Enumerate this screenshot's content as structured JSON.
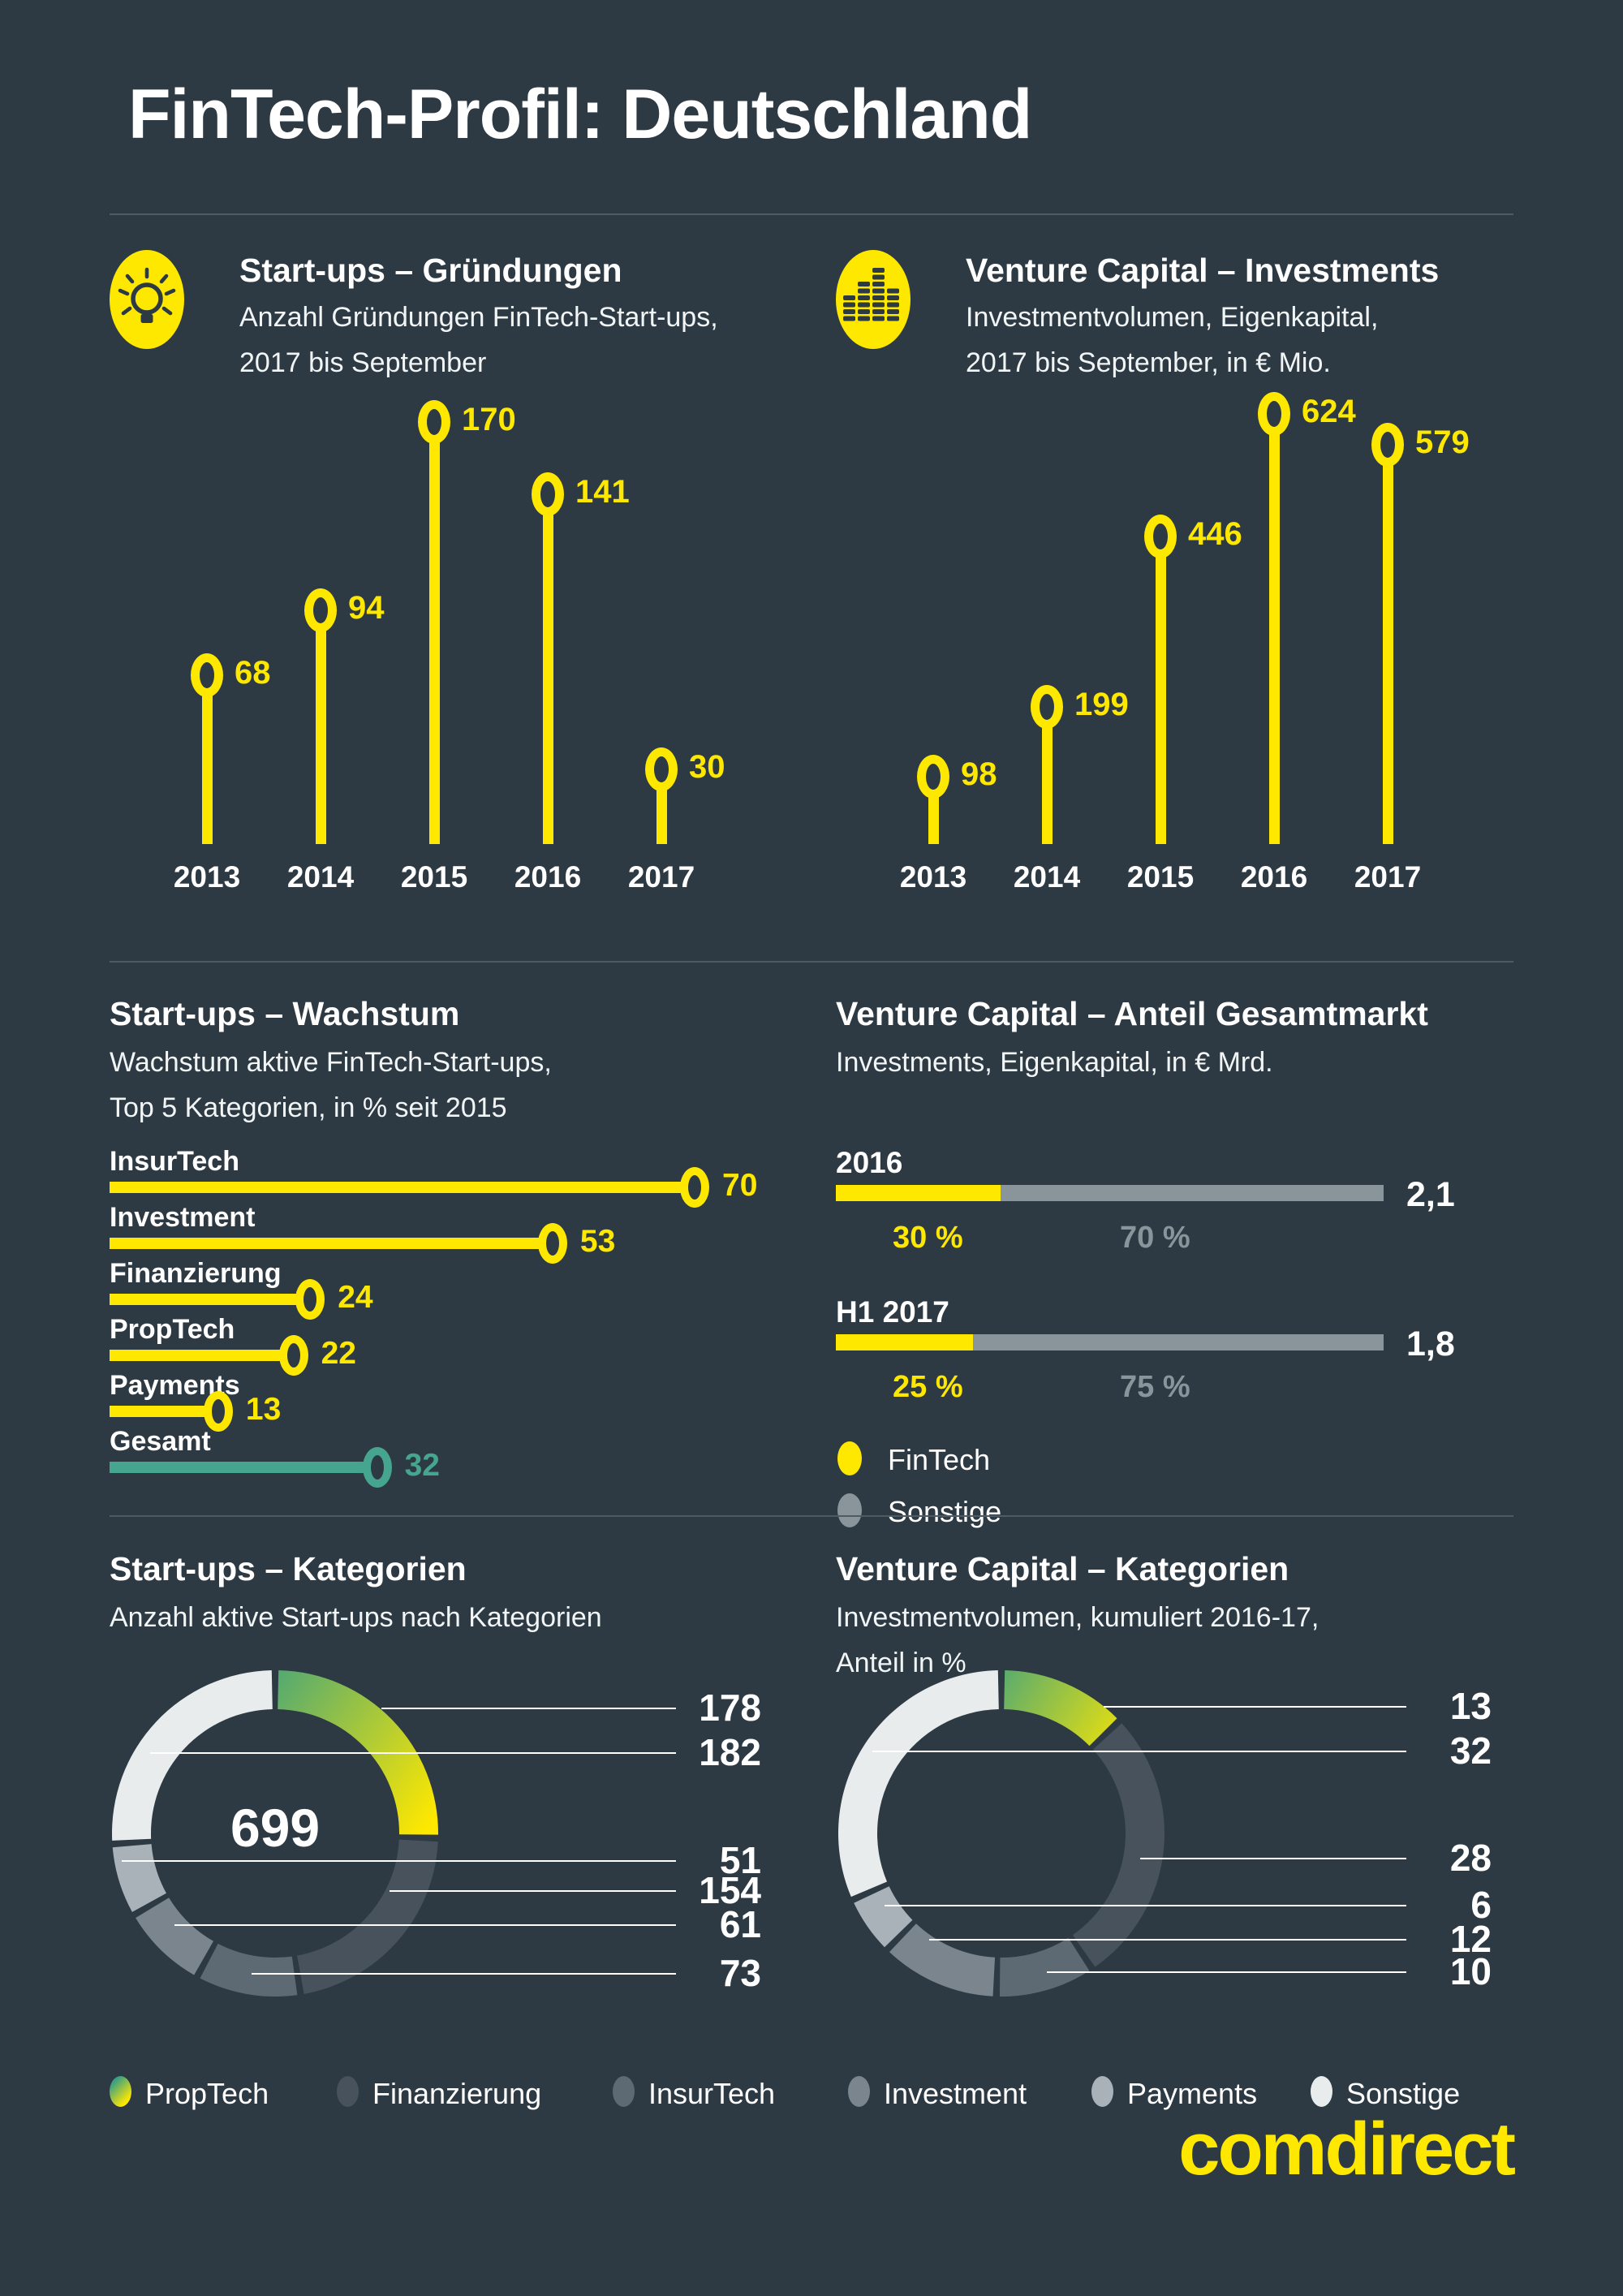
{
  "header": {
    "title": "FinTech-Profil: Deutschland"
  },
  "brand": {
    "logo_text": "comdirect"
  },
  "colors": {
    "background": "#2d3a43",
    "yellow": "#ffe800",
    "teal": "#46a58e",
    "gray": "#8a949b",
    "white": "#ffffff",
    "divider": "#4f5b64",
    "gradient_from": "#3da181",
    "gradient_to": "#ffe800",
    "category_colors": {
      "PropTech": "gradient",
      "Finanzierung": "#47525c",
      "InsurTech": "#5e6a73",
      "Investment": "#7a858e",
      "Payments": "#a9b2b8",
      "Sonstige": "#e9eced"
    }
  },
  "sections": {
    "gruendungen": {
      "icon": "lightbulb-icon",
      "title": "Start-ups – Gründungen",
      "subtitle_lines": [
        "Anzahl Gründungen FinTech-Start-ups,",
        "2017 bis September"
      ]
    },
    "vc_investments": {
      "icon": "coins-icon",
      "title": "Venture Capital – Investments",
      "subtitle_lines": [
        "Investmentvolumen, Eigenkapital,",
        "2017 bis September, in € Mio."
      ]
    },
    "wachstum": {
      "title": "Start-ups – Wachstum",
      "subtitle_lines": [
        "Wachstum aktive FinTech-Start-ups,",
        "Top 5 Kategorien, in % seit 2015"
      ]
    },
    "anteil": {
      "title": "Venture Capital – Anteil Gesamtmarkt",
      "subtitle_lines": [
        "Investments, Eigenkapital, in € Mrd."
      ]
    },
    "startup_kategorien": {
      "title": "Start-ups – Kategorien",
      "subtitle_lines": [
        "Anzahl aktive Start-ups nach Kategorien"
      ]
    },
    "vc_kategorien": {
      "title": "Venture Capital – Kategorien",
      "subtitle_lines": [
        "Investmentvolumen, kumuliert 2016-17,",
        "Anteil in %"
      ]
    }
  },
  "chart_data": [
    {
      "id": "gruendungen",
      "type": "bar",
      "variant": "lollipop-vertical",
      "title": "Start-ups – Gründungen",
      "categories": [
        "2013",
        "2014",
        "2015",
        "2016",
        "2017"
      ],
      "values": [
        68,
        94,
        170,
        141,
        30
      ],
      "ylim": [
        0,
        170
      ],
      "value_color": "#ffe800"
    },
    {
      "id": "vc_investments",
      "type": "bar",
      "variant": "lollipop-vertical",
      "title": "Venture Capital – Investments",
      "categories": [
        "2013",
        "2014",
        "2015",
        "2016",
        "2017"
      ],
      "values": [
        98,
        199,
        446,
        624,
        579
      ],
      "ylim": [
        0,
        624
      ],
      "value_color": "#ffe800"
    },
    {
      "id": "wachstum",
      "type": "bar",
      "variant": "lollipop-horizontal",
      "title": "Start-ups – Wachstum",
      "categories": [
        "InsurTech",
        "Investment",
        "Finanzierung",
        "PropTech",
        "Payments",
        "Gesamt"
      ],
      "values": [
        70,
        53,
        24,
        22,
        13,
        32
      ],
      "bar_colors": [
        "#ffe800",
        "#ffe800",
        "#ffe800",
        "#ffe800",
        "#ffe800",
        "#46a58e"
      ],
      "xlim": [
        0,
        70
      ]
    },
    {
      "id": "anteil",
      "type": "bar",
      "variant": "stacked-horizontal",
      "title": "Venture Capital – Anteil Gesamtmarkt",
      "rows": [
        {
          "label": "2016",
          "total": "2,1",
          "segments": [
            {
              "name": "FinTech",
              "pct": 30,
              "pct_label": "30 %"
            },
            {
              "name": "Sonstige",
              "pct": 70,
              "pct_label": "70 %"
            }
          ]
        },
        {
          "label": "H1 2017",
          "total": "1,8",
          "segments": [
            {
              "name": "FinTech",
              "pct": 25,
              "pct_label": "25 %"
            },
            {
              "name": "Sonstige",
              "pct": 75,
              "pct_label": "75 %"
            }
          ]
        }
      ],
      "legend": [
        {
          "name": "FinTech",
          "color": "#ffe800"
        },
        {
          "name": "Sonstige",
          "color": "#8a949b"
        }
      ]
    },
    {
      "id": "startup_kategorien",
      "type": "pie",
      "variant": "donut",
      "title": "Start-ups – Kategorien",
      "center_label": "699",
      "segments_clockwise": [
        {
          "name": "PropTech",
          "value": 178
        },
        {
          "name": "Finanzierung",
          "value": 154
        },
        {
          "name": "InsurTech",
          "value": 73
        },
        {
          "name": "Investment",
          "value": 61
        },
        {
          "name": "Payments",
          "value": 51
        },
        {
          "name": "Sonstige",
          "value": 182
        }
      ]
    },
    {
      "id": "vc_kategorien",
      "type": "pie",
      "variant": "donut",
      "title": "Venture Capital – Kategorien",
      "unit": "%",
      "segments_clockwise": [
        {
          "name": "PropTech",
          "value": 13
        },
        {
          "name": "Finanzierung",
          "value": 28
        },
        {
          "name": "InsurTech",
          "value": 10
        },
        {
          "name": "Investment",
          "value": 12
        },
        {
          "name": "Payments",
          "value": 6
        },
        {
          "name": "Sonstige",
          "value": 32
        }
      ]
    }
  ],
  "bottom_legend": [
    "PropTech",
    "Finanzierung",
    "InsurTech",
    "Investment",
    "Payments",
    "Sonstige"
  ]
}
